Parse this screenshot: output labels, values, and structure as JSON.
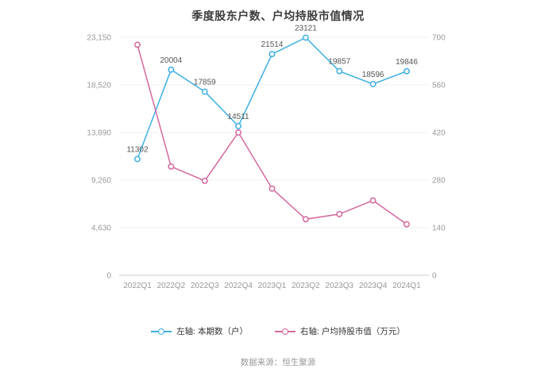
{
  "chart_data": {
    "type": "line",
    "title": "季度股东户数、户均持股市值情况",
    "categories": [
      "2022Q1",
      "2022Q2",
      "2022Q3",
      "2022Q4",
      "2023Q1",
      "2023Q2",
      "2023Q3",
      "2023Q4",
      "2024Q1"
    ],
    "series": [
      {
        "name": "左轴: 本期数（户）",
        "axis": "left",
        "color": "#3cafe4",
        "values": [
          11302,
          20004,
          17859,
          14511,
          21514,
          23121,
          19857,
          18596,
          19846
        ],
        "show_labels": true
      },
      {
        "name": "右轴: 户均持股市值（万元）",
        "axis": "right",
        "color": "#d4679e",
        "values": [
          678,
          320,
          278,
          420,
          255,
          165,
          180,
          220,
          150
        ],
        "show_labels": false
      }
    ],
    "left_axis": {
      "min": 0,
      "max": 23150,
      "ticks": [
        "23,150",
        "18,520",
        "13,890",
        "9,260",
        "4,630",
        "0"
      ]
    },
    "right_axis": {
      "min": 0,
      "max": 700,
      "ticks": [
        "700",
        "560",
        "420",
        "280",
        "140",
        "0"
      ]
    },
    "grid": true,
    "legend_position": "bottom",
    "colors": {
      "grid_line": "#f0f0f0",
      "axis_line": "#cccccc",
      "tick_text": "#999999",
      "data_label": "#555555"
    }
  },
  "footer": {
    "source": "数据来源：恒生聚源"
  }
}
